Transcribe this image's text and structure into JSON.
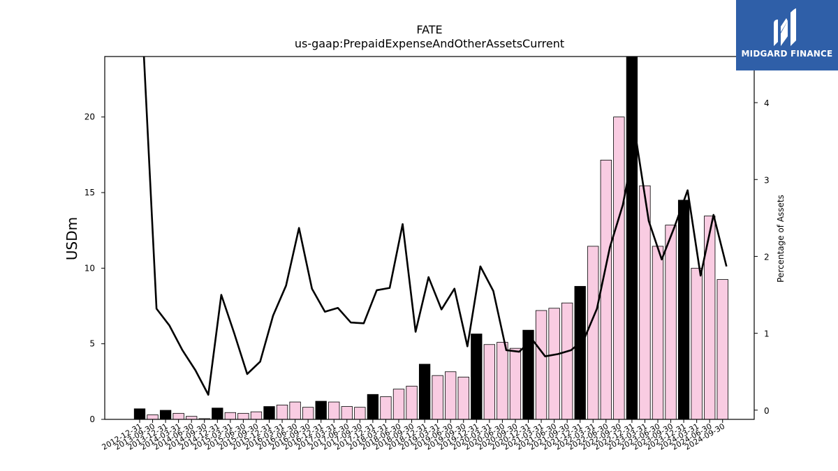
{
  "chart_data": {
    "type": "bar",
    "title": "FATE",
    "subtitle": "us-gaap:PrepaidExpenseAndOtherAssetsCurrent",
    "ylabel": "USDm",
    "ylabel_right": "Percentage of Assets",
    "ylim": [
      0,
      24
    ],
    "ylim_right": [
      -0.12,
      4.6
    ],
    "yticks": [
      0,
      5,
      10,
      15,
      20
    ],
    "yticks_right": [
      0,
      1,
      2,
      3,
      4
    ],
    "categories": [
      "2012-12-31",
      "2013-09-30",
      "2013-12-31",
      "2014-03-31",
      "2014-06-30",
      "2014-09-30",
      "2014-12-31",
      "2015-03-31",
      "2015-06-30",
      "2015-09-30",
      "2015-12-31",
      "2016-03-31",
      "2016-06-30",
      "2016-09-30",
      "2016-12-31",
      "2017-03-31",
      "2017-06-30",
      "2017-09-30",
      "2017-12-31",
      "2018-03-31",
      "2018-06-30",
      "2018-09-30",
      "2018-12-31",
      "2019-03-31",
      "2019-06-30",
      "2019-09-30",
      "2019-12-31",
      "2020-03-31",
      "2020-06-30",
      "2020-09-30",
      "2020-12-31",
      "2021-03-31",
      "2021-06-30",
      "2021-09-30",
      "2021-12-31",
      "2022-03-31",
      "2022-06-30",
      "2022-09-30",
      "2022-12-31",
      "2023-03-31",
      "2023-06-30",
      "2023-09-30",
      "2023-12-31",
      "2024-03-31",
      "2024-06-30",
      "2024-09-30"
    ],
    "series": [
      {
        "type": "bar",
        "values": [
          0.7,
          0.3,
          0.6,
          0.4,
          0.2,
          0.05,
          0.75,
          0.45,
          0.4,
          0.5,
          0.85,
          0.95,
          1.15,
          0.8,
          1.2,
          1.15,
          0.85,
          0.8,
          1.65,
          1.5,
          2.0,
          2.2,
          3.65,
          2.9,
          3.15,
          2.8,
          5.65,
          4.95,
          5.1,
          4.7,
          5.9,
          7.2,
          7.35,
          7.7,
          8.8,
          11.45,
          17.15,
          20.0,
          24.0,
          15.45,
          11.45,
          12.85,
          14.5,
          10.0,
          13.45,
          9.25
        ],
        "highlight_color": "#000000",
        "color": "#f9cce2",
        "highlight_indices": [
          0,
          2,
          6,
          10,
          14,
          18,
          22,
          26,
          30,
          34,
          38,
          42
        ]
      },
      {
        "type": "line",
        "axis": "right",
        "color": "#000000",
        "values": [
          4.7,
          1.32,
          1.1,
          0.78,
          0.52,
          0.2,
          1.5,
          1.0,
          0.47,
          0.63,
          1.23,
          1.62,
          2.37,
          1.58,
          1.28,
          1.33,
          1.14,
          1.13,
          1.56,
          1.59,
          2.42,
          1.02,
          1.73,
          1.31,
          1.58,
          0.83,
          1.87,
          1.55,
          0.78,
          0.76,
          0.92,
          0.7,
          0.73,
          0.78,
          0.92,
          1.32,
          2.12,
          2.67,
          3.55,
          2.46,
          1.96,
          2.39,
          2.86,
          1.75,
          2.54,
          1.87
        ]
      }
    ]
  },
  "logo": {
    "text": "MIDGARD FINANCE",
    "color": "#2f5fa8"
  }
}
